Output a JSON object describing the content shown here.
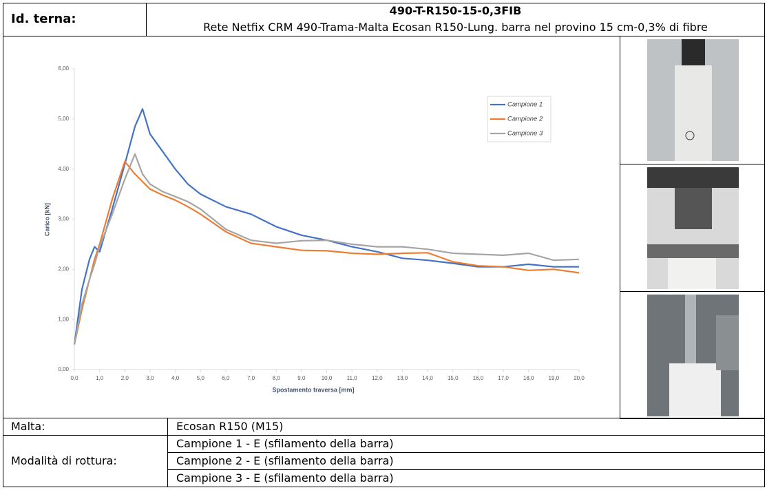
{
  "header": {
    "label": "Id. terna:",
    "title": "490-T-R150-15-0,3FIB",
    "subtitle": "Rete Netfix CRM 490-Trama-Malta Ecosan R150-Lung. barra nel provino 15 cm-0,3% di fibre"
  },
  "chart_data": {
    "type": "line",
    "xlabel": "Spostamento traversa [mm]",
    "ylabel": "Carico [kN]",
    "x": [
      0,
      0.3,
      0.6,
      0.8,
      1.0,
      1.5,
      2.0,
      2.4,
      2.7,
      3.0,
      3.5,
      4.0,
      4.5,
      5.0,
      6.0,
      7.0,
      8.0,
      9.0,
      10.0,
      11.0,
      12.0,
      13.0,
      14.0,
      15.0,
      16.0,
      17.0,
      18.0,
      19.0,
      20.0
    ],
    "series": [
      {
        "name": "Campione 1",
        "color": "#4472c4",
        "values": [
          0.5,
          1.6,
          2.2,
          2.45,
          2.35,
          3.2,
          4.1,
          4.85,
          5.2,
          4.7,
          4.35,
          4.0,
          3.7,
          3.5,
          3.25,
          3.1,
          2.85,
          2.68,
          2.58,
          2.45,
          2.35,
          2.22,
          2.18,
          2.12,
          2.05,
          2.05,
          2.1,
          2.05,
          2.05
        ]
      },
      {
        "name": "Campione 2",
        "color": "#ed7d31",
        "values": [
          0.5,
          1.2,
          1.8,
          2.2,
          2.5,
          3.4,
          4.15,
          3.9,
          3.75,
          3.6,
          3.48,
          3.38,
          3.25,
          3.1,
          2.75,
          2.52,
          2.45,
          2.38,
          2.37,
          2.32,
          2.3,
          2.32,
          2.33,
          2.15,
          2.07,
          2.05,
          1.98,
          2.0,
          1.93
        ]
      },
      {
        "name": "Campione 3",
        "color": "#a5a5a5",
        "values": [
          0.5,
          1.3,
          1.8,
          2.1,
          2.45,
          3.1,
          3.8,
          4.3,
          3.9,
          3.7,
          3.55,
          3.45,
          3.35,
          3.2,
          2.8,
          2.58,
          2.52,
          2.57,
          2.58,
          2.5,
          2.45,
          2.45,
          2.4,
          2.32,
          2.3,
          2.28,
          2.32,
          2.18,
          2.2
        ]
      }
    ],
    "xlim": [
      0,
      20
    ],
    "xticks": [
      {
        "value": 0,
        "label": "0,0"
      },
      {
        "value": 1,
        "label": "1,0"
      },
      {
        "value": 2,
        "label": "2,0"
      },
      {
        "value": 3,
        "label": "3,0"
      },
      {
        "value": 4,
        "label": "4,0"
      },
      {
        "value": 5,
        "label": "5,0"
      },
      {
        "value": 6,
        "label": "6,0"
      },
      {
        "value": 7,
        "label": "7,0"
      },
      {
        "value": 8,
        "label": "8,0"
      },
      {
        "value": 9,
        "label": "9,0"
      },
      {
        "value": 10,
        "label": "10,0"
      },
      {
        "value": 11,
        "label": "11,0"
      },
      {
        "value": 12,
        "label": "12,0"
      },
      {
        "value": 13,
        "label": "13,0"
      },
      {
        "value": 14,
        "label": "14,0"
      },
      {
        "value": 15,
        "label": "15,0"
      },
      {
        "value": 16,
        "label": "16,0"
      },
      {
        "value": 17,
        "label": "17,0"
      },
      {
        "value": 18,
        "label": "18,0"
      },
      {
        "value": 19,
        "label": "19,0"
      },
      {
        "value": 20,
        "label": "20,0"
      }
    ],
    "ylim": [
      0,
      6
    ],
    "yticks": [
      {
        "value": 0,
        "label": "0,00"
      },
      {
        "value": 1,
        "label": "1,00"
      },
      {
        "value": 2,
        "label": "2,00"
      },
      {
        "value": 3,
        "label": "3,00"
      },
      {
        "value": 4,
        "label": "4,00"
      },
      {
        "value": 5,
        "label": "5,00"
      },
      {
        "value": 6,
        "label": "6,00"
      }
    ],
    "grid": false,
    "legend": "upper right"
  },
  "table": {
    "rows": [
      {
        "label": "Malta:",
        "values": [
          "Ecosan R150 (M15)"
        ]
      },
      {
        "label": "Modalità di rottura:",
        "values": [
          "Campione 1 - E (sfilamento della barra)",
          "Campione 2 - E (sfilamento della barra)",
          "Campione 3 - E (sfilamento della barra)"
        ]
      }
    ]
  }
}
